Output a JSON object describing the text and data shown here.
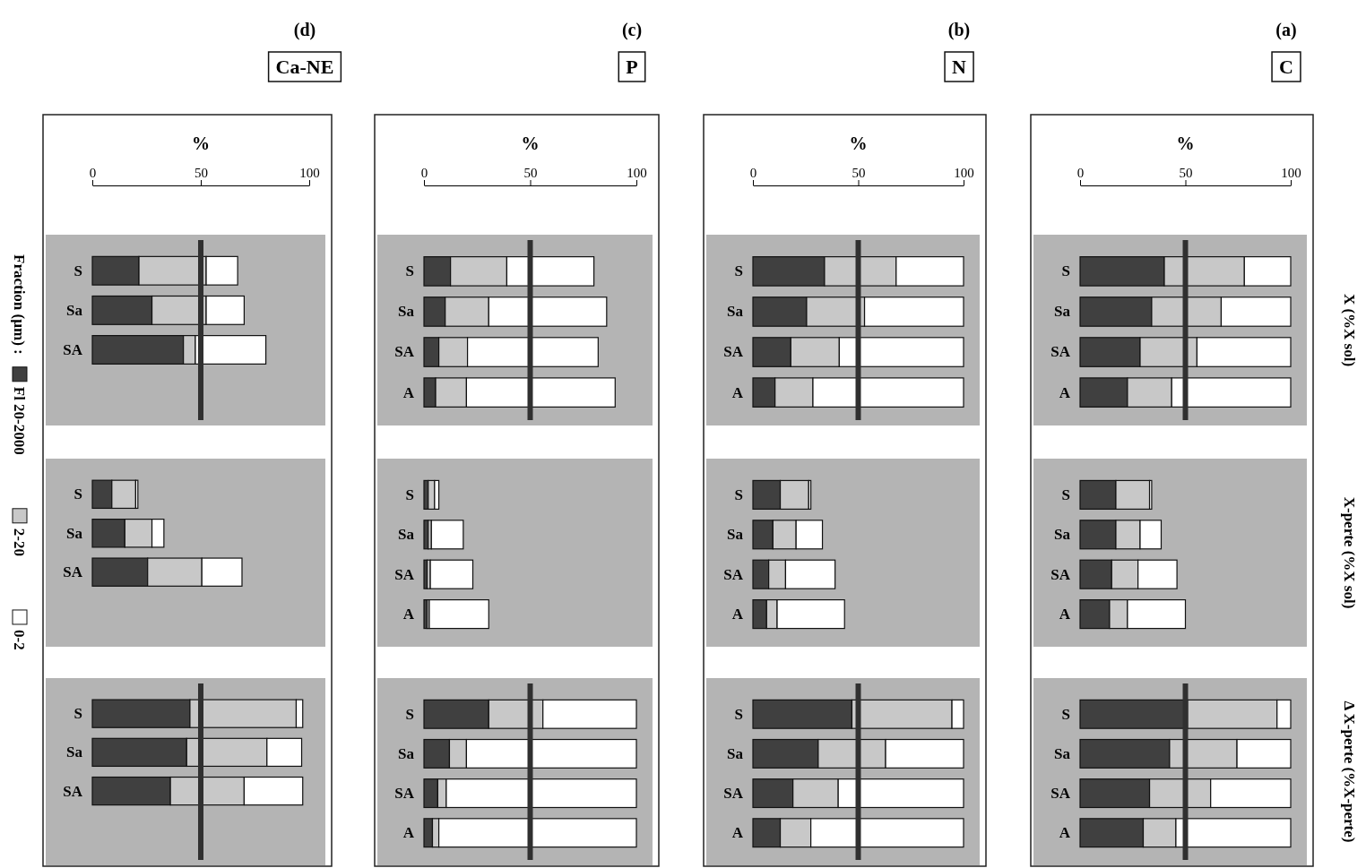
{
  "chart_data": [
    {
      "type": "bar",
      "orientation": "horizontal",
      "stacked": true,
      "title": "(a)",
      "subtitle": "C",
      "xlabel": "%",
      "annotations": [
        "X (%X sol)"
      ],
      "categories": [
        "S",
        "Sa",
        "SA",
        "A"
      ],
      "xlim": [
        0,
        100
      ],
      "xticks": [
        0,
        50,
        100
      ],
      "ref_lines": [
        {
          "axis": "x",
          "value": 50,
          "color": "#303030"
        }
      ],
      "series": [
        {
          "color": "#404040",
          "values": [
            40,
            34,
            28.5,
            22.5
          ]
        },
        {
          "color": "#c8c8c8",
          "values": [
            38,
            33,
            27,
            21
          ]
        },
        {
          "color": "#ffffff",
          "values": [
            22,
            33,
            44.5,
            56.5
          ]
        }
      ]
    },
    {
      "type": "bar",
      "orientation": "horizontal",
      "stacked": true,
      "annotations": [
        "X-perte (%X sol)"
      ],
      "categories": [
        "S",
        "Sa",
        "SA",
        "A"
      ],
      "xlim": [
        0,
        100
      ],
      "tick_labels": "y",
      "series": [
        {
          "color": "#404040",
          "values": [
            17,
            17,
            15,
            14
          ]
        },
        {
          "color": "#c8c8c8",
          "values": [
            16,
            11.5,
            12.5,
            8.5
          ]
        },
        {
          "color": "#ffffff",
          "values": [
            1,
            10,
            18.5,
            27.5
          ]
        }
      ]
    },
    {
      "type": "bar",
      "orientation": "horizontal",
      "stacked": true,
      "annotations": [
        "Δ X-perte (%X-perte)"
      ],
      "categories": [
        "S",
        "Sa",
        "SA",
        "A"
      ],
      "xlim": [
        0,
        100
      ],
      "tick_labels": "y",
      "ref_lines": [
        {
          "axis": "x",
          "value": 50,
          "color": "#303030"
        }
      ],
      "series": [
        {
          "color": "#404040",
          "values": [
            51,
            42.5,
            33,
            30
          ]
        },
        {
          "color": "#c8c8c8",
          "values": [
            42.5,
            32,
            29,
            15.5
          ]
        },
        {
          "color": "#ffffff",
          "values": [
            6.5,
            25.5,
            38,
            54.5
          ]
        }
      ]
    },
    {
      "type": "bar",
      "orientation": "horizontal",
      "stacked": true,
      "title": "(b)",
      "subtitle": "N",
      "xlabel": "%",
      "categories": [
        "S",
        "Sa",
        "SA",
        "A"
      ],
      "xlim": [
        0,
        100
      ],
      "xticks": [
        0,
        50,
        100
      ],
      "ref_lines": [
        {
          "axis": "x",
          "value": 50,
          "color": "#303030"
        }
      ],
      "series": [
        {
          "color": "#404040",
          "values": [
            34,
            25.5,
            18,
            10.5
          ]
        },
        {
          "color": "#c8c8c8",
          "values": [
            34,
            27.5,
            23,
            18
          ]
        },
        {
          "color": "#ffffff",
          "values": [
            32,
            47,
            59,
            71.5
          ]
        }
      ]
    },
    {
      "type": "bar",
      "orientation": "horizontal",
      "stacked": true,
      "categories": [
        "S",
        "Sa",
        "SA",
        "A"
      ],
      "xlim": [
        0,
        100
      ],
      "tick_labels": "y",
      "series": [
        {
          "color": "#404040",
          "values": [
            13,
            9.5,
            7.5,
            6.5
          ]
        },
        {
          "color": "#c8c8c8",
          "values": [
            13.5,
            11,
            8,
            5
          ]
        },
        {
          "color": "#ffffff",
          "values": [
            1,
            12.5,
            23.5,
            32
          ]
        }
      ]
    },
    {
      "type": "bar",
      "orientation": "horizontal",
      "stacked": true,
      "categories": [
        "S",
        "Sa",
        "SA",
        "A"
      ],
      "xlim": [
        0,
        100
      ],
      "tick_labels": "y",
      "ref_lines": [
        {
          "axis": "x",
          "value": 50,
          "color": "#303030"
        }
      ],
      "series": [
        {
          "color": "#404040",
          "values": [
            47,
            31,
            19,
            13
          ]
        },
        {
          "color": "#c8c8c8",
          "values": [
            47.5,
            32,
            21.5,
            14.5
          ]
        },
        {
          "color": "#ffffff",
          "values": [
            5.5,
            37,
            59.5,
            72.5
          ]
        }
      ]
    },
    {
      "type": "bar",
      "orientation": "horizontal",
      "stacked": true,
      "title": "(c)",
      "subtitle": "P",
      "xlabel": "%",
      "categories": [
        "S",
        "Sa",
        "SA",
        "A"
      ],
      "xlim": [
        0,
        100
      ],
      "xticks": [
        0,
        50,
        100
      ],
      "ref_lines": [
        {
          "axis": "x",
          "value": 50,
          "color": "#303030"
        }
      ],
      "series": [
        {
          "color": "#404040",
          "values": [
            12.5,
            10,
            7,
            5.5
          ]
        },
        {
          "color": "#c8c8c8",
          "values": [
            26.5,
            20.5,
            13.5,
            14.5
          ]
        },
        {
          "color": "#ffffff",
          "values": [
            41,
            55.5,
            61.5,
            70
          ]
        }
      ]
    },
    {
      "type": "bar",
      "orientation": "horizontal",
      "stacked": true,
      "categories": [
        "S",
        "Sa",
        "SA",
        "A"
      ],
      "xlim": [
        0,
        100
      ],
      "tick_labels": "y",
      "series": [
        {
          "color": "#404040",
          "values": [
            2,
            2,
            1.5,
            1.5
          ]
        },
        {
          "color": "#c8c8c8",
          "values": [
            3,
            1.5,
            1.5,
            1
          ]
        },
        {
          "color": "#ffffff",
          "values": [
            2,
            15,
            20,
            28
          ]
        }
      ]
    },
    {
      "type": "bar",
      "orientation": "horizontal",
      "stacked": true,
      "categories": [
        "S",
        "Sa",
        "SA",
        "A"
      ],
      "xlim": [
        0,
        100
      ],
      "tick_labels": "y",
      "ref_lines": [
        {
          "axis": "x",
          "value": 50,
          "color": "#303030"
        }
      ],
      "series": [
        {
          "color": "#404040",
          "values": [
            30.5,
            12,
            6.5,
            4
          ]
        },
        {
          "color": "#c8c8c8",
          "values": [
            25.5,
            8,
            4,
            3
          ]
        },
        {
          "color": "#ffffff",
          "values": [
            44,
            80,
            89.5,
            93
          ]
        }
      ]
    },
    {
      "type": "bar",
      "orientation": "horizontal",
      "stacked": true,
      "title": "(d)",
      "subtitle": "Ca-NE",
      "xlabel": "%",
      "legend_title": "Fraction (µm) :",
      "legend": "left",
      "categories": [
        "S",
        "Sa",
        "SA"
      ],
      "xlim": [
        0,
        100
      ],
      "xticks": [
        0,
        50,
        100
      ],
      "ref_lines": [
        {
          "axis": "x",
          "value": 50,
          "color": "#303030"
        }
      ],
      "series": [
        {
          "name": "Fl 20-2000",
          "color": "#404040",
          "values": [
            21.5,
            27.5,
            42
          ]
        },
        {
          "name": "2-20",
          "color": "#c8c8c8",
          "values": [
            31,
            25,
            5.5
          ]
        },
        {
          "name": "0-2",
          "color": "#ffffff",
          "values": [
            14.5,
            17.5,
            32.5
          ]
        }
      ]
    },
    {
      "type": "bar",
      "orientation": "horizontal",
      "stacked": true,
      "categories": [
        "S",
        "Sa",
        "SA"
      ],
      "xlim": [
        0,
        100
      ],
      "tick_labels": "y",
      "series": [
        {
          "color": "#404040",
          "values": [
            9,
            15,
            25.5
          ]
        },
        {
          "color": "#c8c8c8",
          "values": [
            11,
            12.5,
            25
          ]
        },
        {
          "color": "#ffffff",
          "values": [
            1,
            5.5,
            18.5
          ]
        }
      ]
    },
    {
      "type": "bar",
      "orientation": "horizontal",
      "stacked": true,
      "categories": [
        "S",
        "Sa",
        "SA"
      ],
      "xlim": [
        0,
        100
      ],
      "tick_labels": "y",
      "ref_lines": [
        {
          "axis": "x",
          "value": 50,
          "color": "#303030"
        }
      ],
      "series": [
        {
          "color": "#404040",
          "values": [
            45,
            43.5,
            36
          ]
        },
        {
          "color": "#c8c8c8",
          "values": [
            49,
            37,
            34
          ]
        },
        {
          "color": "#ffffff",
          "values": [
            3,
            16,
            27
          ]
        }
      ]
    }
  ]
}
